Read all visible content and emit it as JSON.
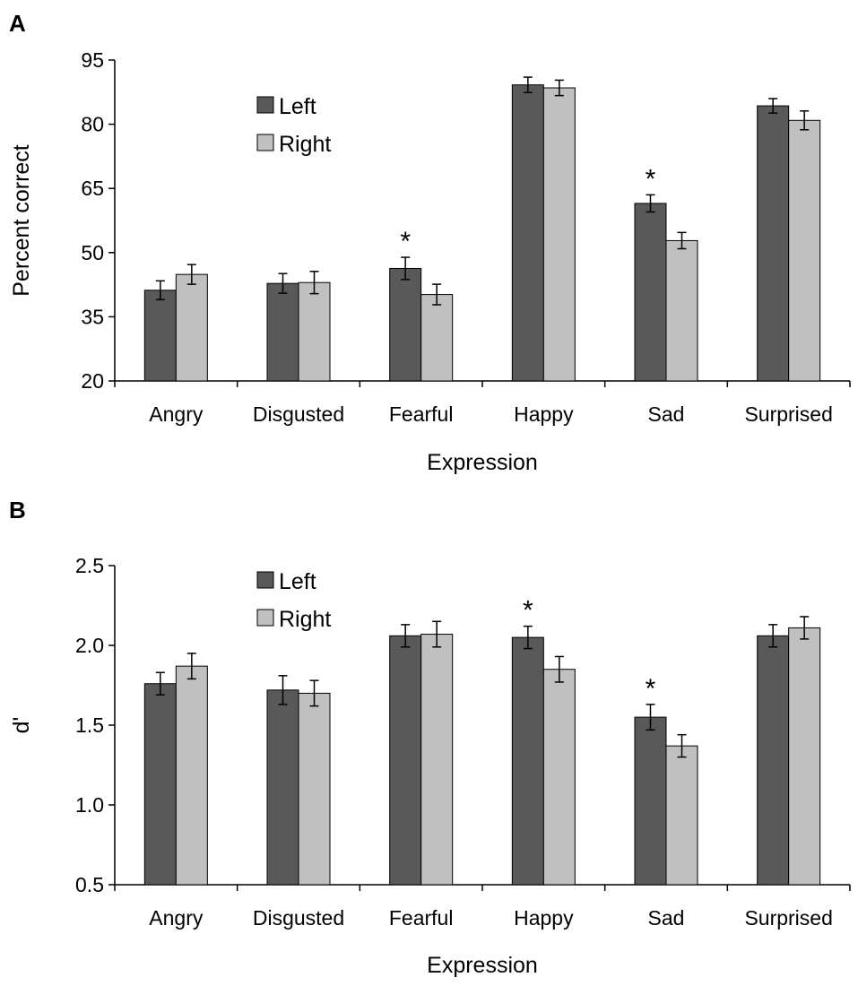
{
  "chart_data": [
    {
      "panel": "A",
      "type": "bar",
      "categories": [
        "Angry",
        "Disgusted",
        "Fearful",
        "Happy",
        "Sad",
        "Surprised"
      ],
      "series": [
        {
          "name": "Left",
          "color": "#595959",
          "values": [
            41.2,
            42.8,
            46.3,
            89.2,
            61.5,
            84.3
          ],
          "errors": [
            2.2,
            2.3,
            2.6,
            1.8,
            2.0,
            1.7
          ]
        },
        {
          "name": "Right",
          "color": "#c0c0c0",
          "values": [
            44.9,
            43.0,
            40.2,
            88.5,
            52.8,
            80.9
          ],
          "errors": [
            2.3,
            2.6,
            2.4,
            1.8,
            1.9,
            2.2
          ]
        }
      ],
      "significant": [
        "Fearful",
        "Sad"
      ],
      "significance_marker": "*",
      "xlabel": "Expression",
      "ylabel": "Percent correct",
      "ylim": [
        20,
        95
      ],
      "yticks": [
        20,
        35,
        50,
        65,
        80,
        95
      ],
      "ytick_labels": [
        "20",
        "35",
        "50",
        "65",
        "80",
        "95"
      ],
      "legend_position": "top-left"
    },
    {
      "panel": "B",
      "type": "bar",
      "categories": [
        "Angry",
        "Disgusted",
        "Fearful",
        "Happy",
        "Sad",
        "Surprised"
      ],
      "series": [
        {
          "name": "Left",
          "color": "#595959",
          "values": [
            1.76,
            1.72,
            2.06,
            2.05,
            1.55,
            2.06
          ],
          "errors": [
            0.07,
            0.09,
            0.07,
            0.07,
            0.08,
            0.07
          ]
        },
        {
          "name": "Right",
          "color": "#c0c0c0",
          "values": [
            1.87,
            1.7,
            2.07,
            1.85,
            1.37,
            2.11
          ],
          "errors": [
            0.08,
            0.08,
            0.08,
            0.08,
            0.07,
            0.07
          ]
        }
      ],
      "significant": [
        "Happy",
        "Sad"
      ],
      "significance_marker": "*",
      "xlabel": "Expression",
      "ylabel": "d'",
      "ylim": [
        0.5,
        2.5
      ],
      "yticks": [
        0.5,
        1.0,
        1.5,
        2.0,
        2.5
      ],
      "ytick_labels": [
        "0.5",
        "1.0",
        "1.5",
        "2.0",
        "2.5"
      ],
      "legend_position": "top-left"
    }
  ]
}
